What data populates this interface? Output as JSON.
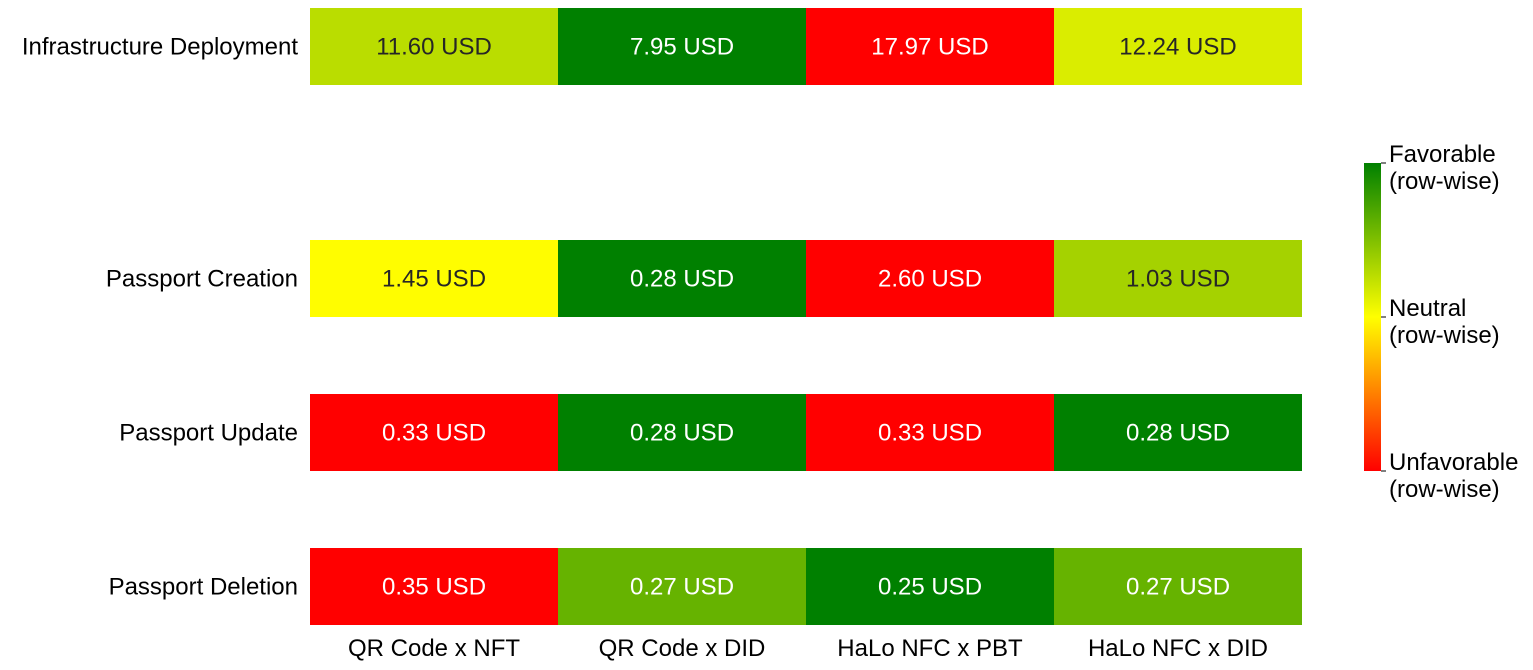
{
  "chart_data": {
    "type": "heatmap",
    "title": "",
    "xlabel": "",
    "ylabel": "",
    "columns": [
      "QR Code x NFT",
      "QR Code x DID",
      "HaLo NFC x PBT",
      "HaLo NFC x DID"
    ],
    "rows": [
      {
        "label": "Infrastructure Deployment",
        "values": [
          11.6,
          7.95,
          17.97,
          12.24
        ],
        "texts": [
          "11.60 USD",
          "7.95 USD",
          "17.97 USD",
          "12.24 USD"
        ]
      },
      {
        "label": "Passport Creation",
        "values": [
          1.45,
          0.28,
          2.6,
          1.03
        ],
        "texts": [
          "1.45 USD",
          "0.28 USD",
          "2.60 USD",
          "1.03 USD"
        ]
      },
      {
        "label": "Passport Update",
        "values": [
          0.33,
          0.28,
          0.33,
          0.28
        ],
        "texts": [
          "0.33 USD",
          "0.28 USD",
          "0.33 USD",
          "0.28 USD"
        ]
      },
      {
        "label": "Passport Deletion",
        "values": [
          0.35,
          0.27,
          0.25,
          0.27
        ],
        "texts": [
          "0.35 USD",
          "0.27 USD",
          "0.25 USD",
          "0.27 USD"
        ]
      }
    ],
    "scale": "row-wise, lower cost is favorable",
    "colorbar": {
      "colors": {
        "favorable": "#008000",
        "neutral": "#ffff00",
        "unfavorable": "#ff0000"
      },
      "ticks": [
        {
          "line1": "Favorable",
          "line2": "(row-wise)"
        },
        {
          "line1": "Neutral",
          "line2": "(row-wise)"
        },
        {
          "line1": "Unfavorable",
          "line2": "(row-wise)"
        }
      ]
    },
    "cell_text_colors": {
      "dark": "#262626",
      "light": "#ffffff"
    }
  }
}
